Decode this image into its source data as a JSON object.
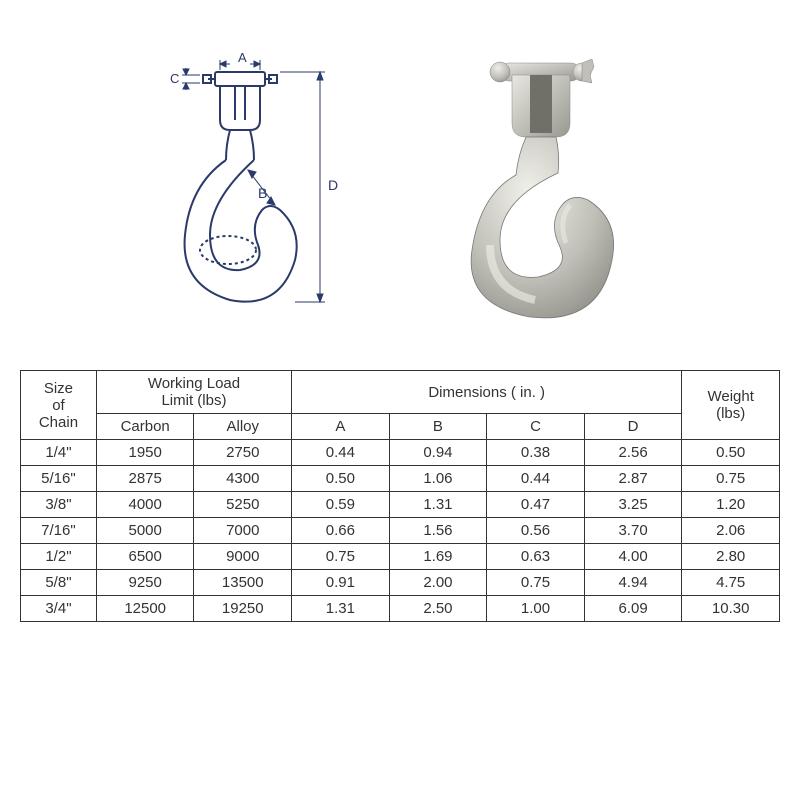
{
  "diagram": {
    "labels": {
      "A": "A",
      "B": "B",
      "C": "C",
      "D": "D"
    },
    "schematic_stroke": "#2a3a6a",
    "photo_fill_light": "#d8d8d2",
    "photo_fill_dark": "#a8a8a0"
  },
  "table": {
    "columns": {
      "size": "Size\nof\nChain",
      "wll": "Working Load\nLimit (lbs)",
      "carbon": "Carbon",
      "alloy": "Alloy",
      "dimensions": "Dimensions ( in. )",
      "A": "A",
      "B": "B",
      "C": "C",
      "D": "D",
      "weight": "Weight\n(lbs)"
    },
    "rows": [
      {
        "size": "1/4\"",
        "carbon": "1950",
        "alloy": "2750",
        "A": "0.44",
        "B": "0.94",
        "C": "0.38",
        "D": "2.56",
        "wt": "0.50"
      },
      {
        "size": "5/16\"",
        "carbon": "2875",
        "alloy": "4300",
        "A": "0.50",
        "B": "1.06",
        "C": "0.44",
        "D": "2.87",
        "wt": "0.75"
      },
      {
        "size": "3/8\"",
        "carbon": "4000",
        "alloy": "5250",
        "A": "0.59",
        "B": "1.31",
        "C": "0.47",
        "D": "3.25",
        "wt": "1.20"
      },
      {
        "size": "7/16\"",
        "carbon": "5000",
        "alloy": "7000",
        "A": "0.66",
        "B": "1.56",
        "C": "0.56",
        "D": "3.70",
        "wt": "2.06"
      },
      {
        "size": "1/2\"",
        "carbon": "6500",
        "alloy": "9000",
        "A": "0.75",
        "B": "1.69",
        "C": "0.63",
        "D": "4.00",
        "wt": "2.80"
      },
      {
        "size": "5/8\"",
        "carbon": "9250",
        "alloy": "13500",
        "A": "0.91",
        "B": "2.00",
        "C": "0.75",
        "D": "4.94",
        "wt": "4.75"
      },
      {
        "size": "3/4\"",
        "carbon": "12500",
        "alloy": "19250",
        "A": "1.31",
        "B": "2.50",
        "C": "1.00",
        "D": "6.09",
        "wt": "10.30"
      }
    ],
    "border_color": "#333333",
    "text_color": "#333333",
    "fontsize": 15,
    "background_color": "#ffffff"
  }
}
